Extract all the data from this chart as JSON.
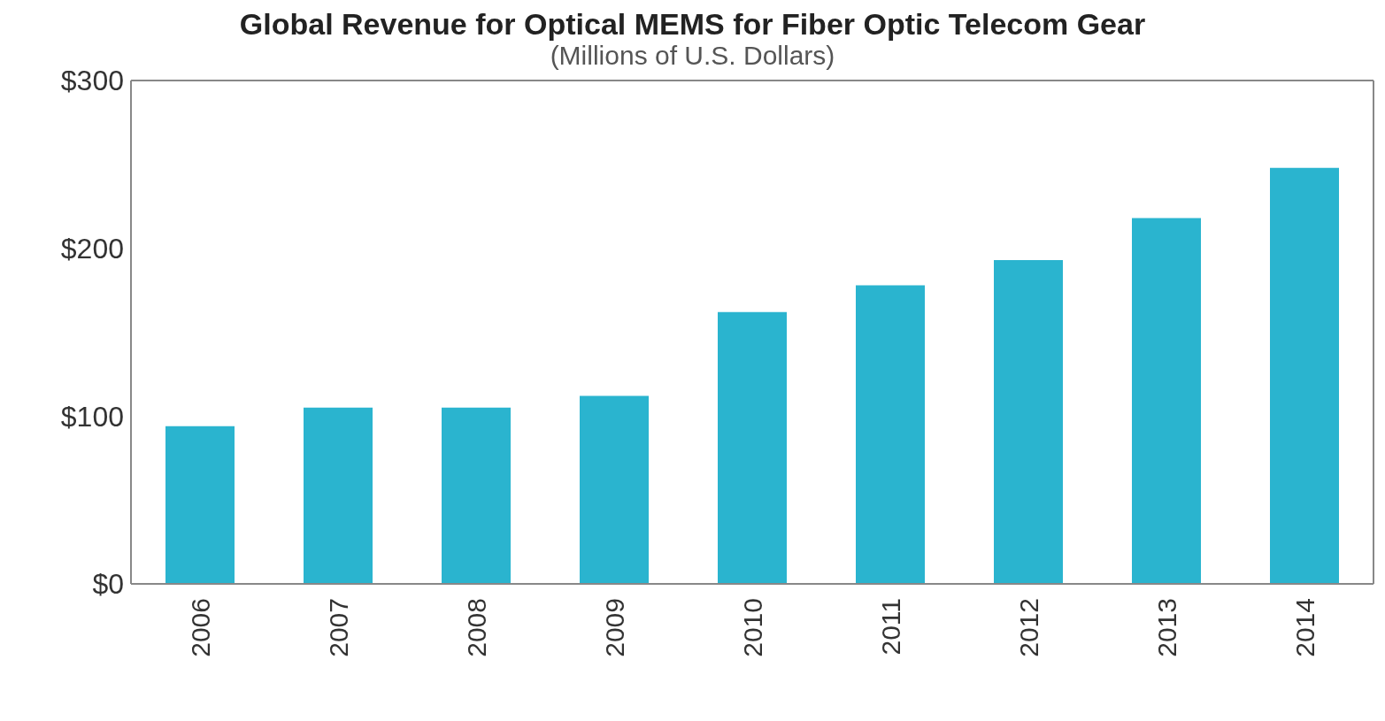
{
  "chart_data": {
    "type": "bar",
    "title": "Global Revenue for Optical MEMS for Fiber Optic Telecom Gear",
    "subtitle": "(Millions of U.S. Dollars)",
    "categories": [
      "2006",
      "2007",
      "2008",
      "2009",
      "2010",
      "2011",
      "2012",
      "2013",
      "2014"
    ],
    "values": [
      94,
      105,
      105,
      112,
      162,
      178,
      193,
      218,
      248
    ],
    "color": "#2ab4cf",
    "ylim": [
      0,
      300
    ],
    "yticks": [
      {
        "value": 0,
        "label": "$0"
      },
      {
        "value": 100,
        "label": "$100"
      },
      {
        "value": 200,
        "label": "$200"
      },
      {
        "value": 300,
        "label": "$300"
      }
    ],
    "grid": false,
    "legend": false
  }
}
